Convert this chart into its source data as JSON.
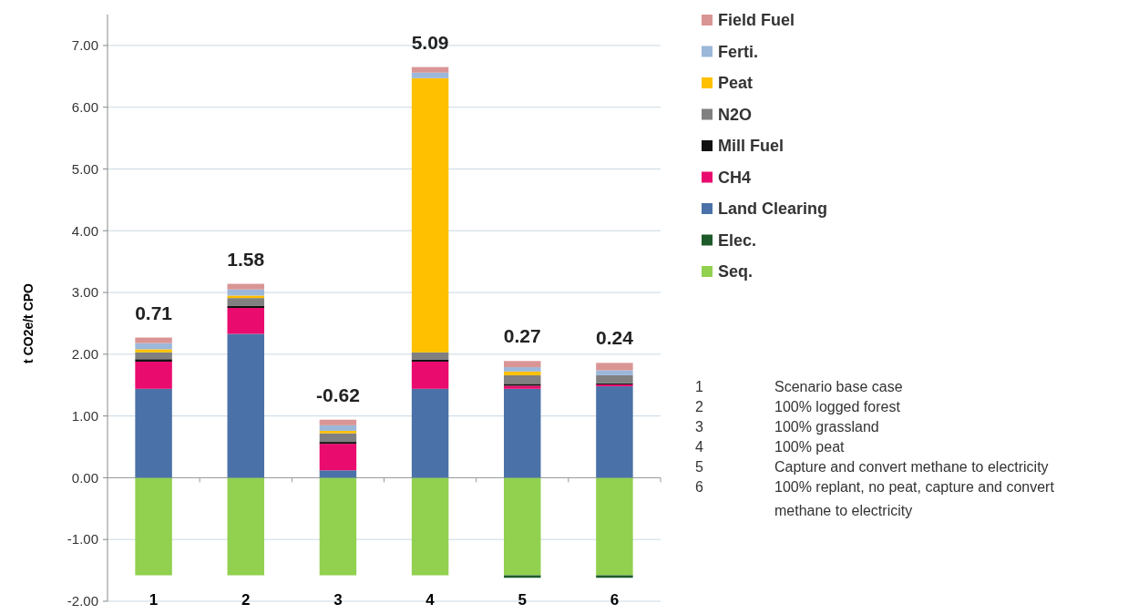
{
  "chart_data": {
    "type": "bar",
    "stacked": true,
    "ylabel": "t CO2e/t CPO",
    "categories": [
      "1",
      "2",
      "3",
      "4",
      "5",
      "6"
    ],
    "series": [
      {
        "name": "Seq.",
        "color": "#92d050",
        "values": [
          -1.58,
          -1.58,
          -1.58,
          -1.58,
          -1.58,
          -1.58
        ]
      },
      {
        "name": "Elec.",
        "color": "#1e5a2a",
        "values": [
          0,
          0,
          0,
          0,
          -0.04,
          -0.04
        ]
      },
      {
        "name": "Land Clearing",
        "color": "#4a72a8",
        "values": [
          1.44,
          2.33,
          0.12,
          1.44,
          1.44,
          1.48
        ]
      },
      {
        "name": "CH4",
        "color": "#ea0b6e",
        "values": [
          0.44,
          0.42,
          0.43,
          0.44,
          0.05,
          0.03
        ]
      },
      {
        "name": "Mill Fuel",
        "color": "#111111",
        "values": [
          0.04,
          0.03,
          0.03,
          0.03,
          0.03,
          0.02
        ]
      },
      {
        "name": "N2O",
        "color": "#808080",
        "values": [
          0.11,
          0.13,
          0.14,
          0.12,
          0.14,
          0.13
        ]
      },
      {
        "name": "Peat",
        "color": "#ffc000",
        "values": [
          0.05,
          0.04,
          0.04,
          4.44,
          0.06,
          0
        ]
      },
      {
        "name": "Ferti.",
        "color": "#9bb7d9",
        "values": [
          0.1,
          0.1,
          0.09,
          0.09,
          0.07,
          0.08
        ]
      },
      {
        "name": "Field Fuel",
        "color": "#d99594",
        "values": [
          0.09,
          0.09,
          0.09,
          0.09,
          0.1,
          0.12
        ]
      }
    ],
    "totals": [
      "0.71",
      "1.58",
      "-0.62",
      "5.09",
      "0.27",
      "0.24"
    ],
    "ylim": [
      -2,
      7.5
    ],
    "yticks": [
      {
        "value": -2,
        "label": "-2.00"
      },
      {
        "value": -1,
        "label": "-1.00"
      },
      {
        "value": 0,
        "label": "0.00"
      },
      {
        "value": 1,
        "label": "1.00"
      },
      {
        "value": 2,
        "label": "2.00"
      },
      {
        "value": 3,
        "label": "3.00"
      },
      {
        "value": 4,
        "label": "4.00"
      },
      {
        "value": 5,
        "label": "5.00"
      },
      {
        "value": 6,
        "label": "6.00"
      },
      {
        "value": 7,
        "label": "7.00"
      }
    ],
    "grid": "y",
    "legend": "right",
    "annotations": [
      "1 Scenario base case",
      "2 100% logged forest",
      "3 100% grassland",
      "4 100% peat",
      "5 Capture and convert methane to electricity",
      "6 100% replant, no peat, capture and convert methane to electricity"
    ]
  }
}
